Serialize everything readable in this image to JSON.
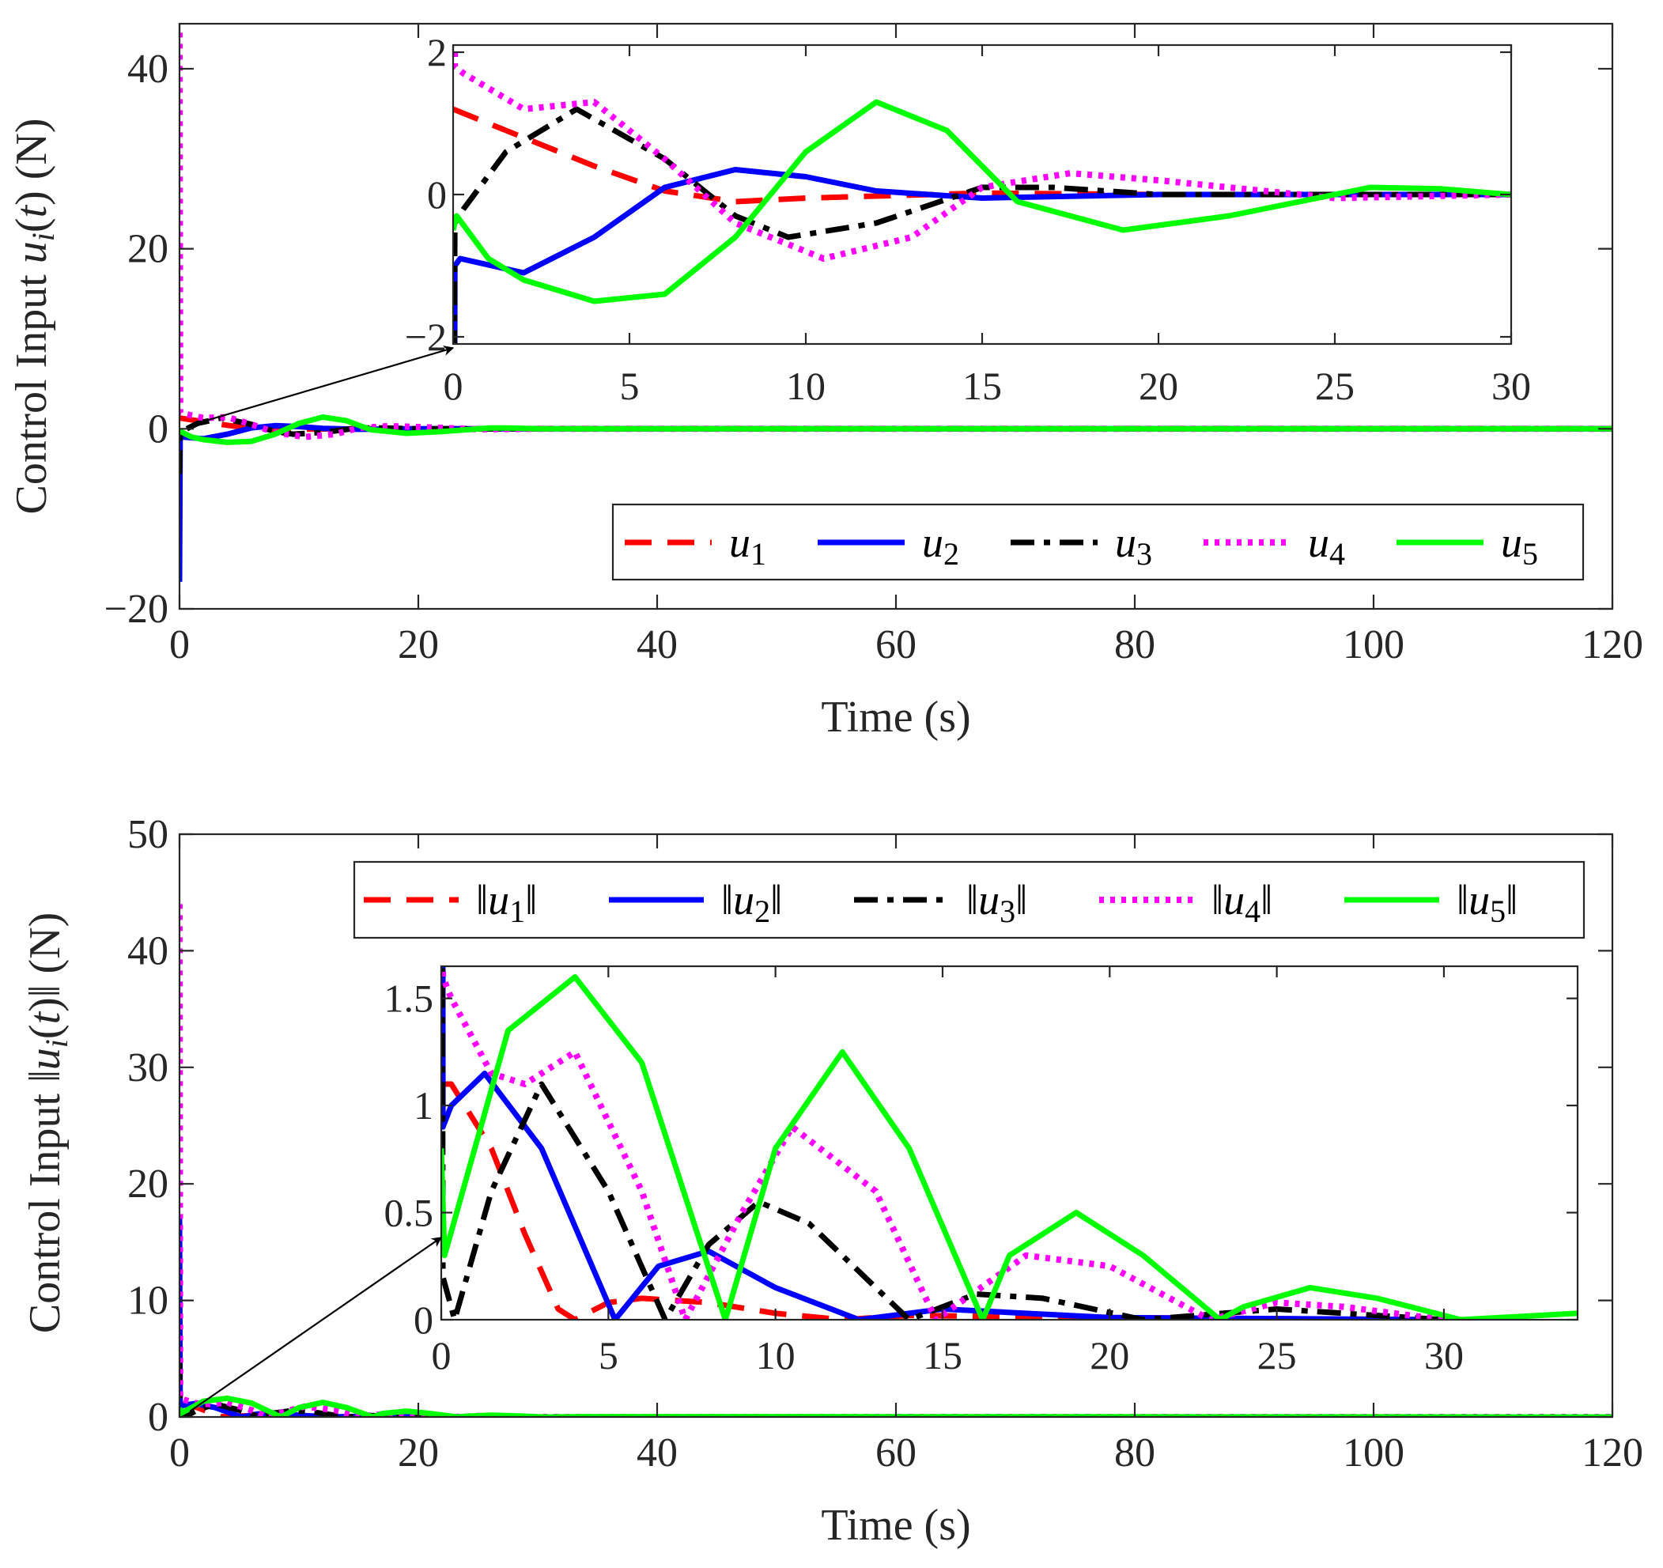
{
  "chart_data": [
    {
      "type": "line",
      "xlabel": "Time (s)",
      "ylabel": "Control Input u_i(t) (N)",
      "xlim": [
        0,
        120
      ],
      "ylim": [
        -20,
        45
      ],
      "xticks": [
        "0",
        "20",
        "40",
        "60",
        "80",
        "100",
        "120"
      ],
      "yticks": [
        "−20",
        "0",
        "20",
        "40"
      ],
      "legend_position": "lower-right",
      "legend_orientation": "horizontal",
      "series": [
        {
          "name": "u1",
          "color": "#ff0000",
          "style": "dashed",
          "x": [
            0,
            0.5,
            2,
            4,
            6,
            8,
            10,
            15,
            20,
            30,
            120
          ],
          "y": [
            1.2,
            1.1,
            0.8,
            0.4,
            0.05,
            -0.1,
            -0.05,
            0.02,
            0,
            0,
            0
          ]
        },
        {
          "name": "u2",
          "color": "#0000ff",
          "style": "solid",
          "x": [
            0,
            0.05,
            0.2,
            2,
            4,
            6,
            8,
            10,
            12,
            15,
            20,
            30,
            120
          ],
          "y": [
            -17,
            -1.0,
            -0.9,
            -1.1,
            -0.6,
            0.1,
            0.35,
            0.25,
            0.05,
            -0.05,
            0,
            0,
            0
          ]
        },
        {
          "name": "u3",
          "color": "#000000",
          "style": "dashdot",
          "x": [
            0,
            0.05,
            0.3,
            1.5,
            3.5,
            6,
            8,
            9.5,
            12,
            15,
            17,
            20,
            30,
            120
          ],
          "y": [
            -5,
            -0.4,
            -0.2,
            0.6,
            1.2,
            0.5,
            -0.3,
            -0.6,
            -0.4,
            0.1,
            0.1,
            0,
            0,
            0
          ]
        },
        {
          "name": "u4",
          "color": "#ff00ff",
          "style": "dotted",
          "x": [
            0,
            0.05,
            0.3,
            2,
            4,
            6,
            8,
            10.5,
            13,
            15,
            17.5,
            20,
            25,
            30,
            120
          ],
          "y": [
            44,
            1.8,
            1.7,
            1.2,
            1.3,
            0.5,
            -0.4,
            -0.9,
            -0.6,
            0.1,
            0.3,
            0.2,
            -0.05,
            0,
            0
          ]
        },
        {
          "name": "u5",
          "color": "#00ff00",
          "style": "solid",
          "x": [
            0,
            0.1,
            1,
            2,
            4,
            6,
            8,
            10,
            12,
            14,
            16,
            19,
            22,
            26,
            28,
            30,
            40,
            60,
            120
          ],
          "y": [
            -0.5,
            -0.3,
            -0.9,
            -1.2,
            -1.5,
            -1.4,
            -0.6,
            0.6,
            1.3,
            0.9,
            -0.1,
            -0.5,
            -0.3,
            0.1,
            0.08,
            0,
            0,
            0,
            0
          ]
        }
      ],
      "inset": {
        "xlim": [
          0,
          30
        ],
        "ylim": [
          -2.1,
          2.1
        ],
        "xticks": [
          "0",
          "5",
          "10",
          "15",
          "20",
          "25",
          "30"
        ],
        "yticks": [
          "−2",
          "0",
          "2"
        ]
      }
    },
    {
      "type": "line",
      "xlabel": "Time (s)",
      "ylabel": "Control Input ||u_i(t)|| (N)",
      "xlim": [
        0,
        120
      ],
      "ylim": [
        0,
        50
      ],
      "xticks": [
        "0",
        "20",
        "40",
        "60",
        "80",
        "100",
        "120"
      ],
      "yticks": [
        "0",
        "10",
        "20",
        "30",
        "40",
        "50"
      ],
      "legend_position": "top-right",
      "legend_orientation": "horizontal",
      "series": [
        {
          "name": "||u1||",
          "color": "#ff0000",
          "style": "dashed",
          "x": [
            0,
            0.3,
            1.5,
            2.5,
            3.5,
            4,
            5,
            6,
            8,
            10,
            12,
            14,
            20,
            30,
            120
          ],
          "y": [
            1.1,
            1.1,
            0.8,
            0.4,
            0.05,
            0,
            0.08,
            0.1,
            0.08,
            0.03,
            0,
            0.02,
            0.01,
            0,
            0
          ]
        },
        {
          "name": "||u2||",
          "color": "#0000ff",
          "style": "solid",
          "x": [
            0,
            0.05,
            0.3,
            1.3,
            3,
            5.2,
            6.5,
            8,
            10,
            12.5,
            15,
            20,
            30,
            120
          ],
          "y": [
            17,
            0.9,
            1.0,
            1.15,
            0.8,
            0,
            0.25,
            0.32,
            0.15,
            0,
            0.05,
            0.01,
            0,
            0
          ]
        },
        {
          "name": "||u3||",
          "color": "#000000",
          "style": "dashdot",
          "x": [
            0,
            0.05,
            0.4,
            1.5,
            3,
            5,
            6.7,
            8,
            9.5,
            11,
            14,
            16,
            18,
            21,
            25,
            30,
            120
          ],
          "y": [
            5,
            0.2,
            0,
            0.6,
            1.1,
            0.6,
            0,
            0.35,
            0.55,
            0.45,
            0,
            0.12,
            0.1,
            0,
            0.05,
            0,
            0
          ]
        },
        {
          "name": "||u4||",
          "color": "#ff00ff",
          "style": "dotted",
          "x": [
            0,
            0.05,
            0.3,
            1.5,
            2.5,
            4,
            6,
            7.3,
            9,
            10.5,
            13,
            14.8,
            17.5,
            20,
            23,
            25,
            27,
            30,
            120
          ],
          "y": [
            44,
            1.6,
            1.5,
            1.15,
            1.1,
            1.25,
            0.6,
            0,
            0.5,
            0.9,
            0.6,
            0,
            0.3,
            0.25,
            0,
            0.08,
            0.06,
            0,
            0
          ]
        },
        {
          "name": "||u5||",
          "color": "#00ff00",
          "style": "solid",
          "x": [
            0,
            0.1,
            2,
            4,
            6,
            8.5,
            10,
            12,
            14,
            16.2,
            17,
            19,
            21,
            23.3,
            24,
            26,
            28,
            30.5,
            34,
            120
          ],
          "y": [
            0.8,
            0.3,
            1.35,
            1.6,
            1.2,
            0,
            0.8,
            1.25,
            0.8,
            0,
            0.3,
            0.5,
            0.3,
            0,
            0.06,
            0.15,
            0.1,
            0,
            0.03,
            0
          ]
        }
      ],
      "inset": {
        "xlim": [
          0,
          34
        ],
        "ylim": [
          0,
          1.65
        ],
        "xticks": [
          "0",
          "5",
          "10",
          "15",
          "20",
          "25",
          "30"
        ],
        "yticks": [
          "0",
          "0.5",
          "1",
          "1.5"
        ]
      }
    }
  ]
}
